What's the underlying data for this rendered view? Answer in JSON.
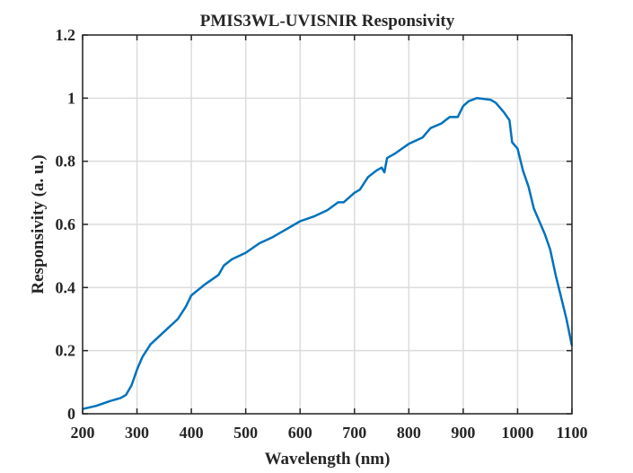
{
  "chart_data": {
    "type": "line",
    "title": "PMIS3WL-UVISNIR Responsivity",
    "xlabel": "Wavelength (nm)",
    "ylabel": "Responsivity (a. u.)",
    "xlim": [
      200,
      1100
    ],
    "ylim": [
      0,
      1.2
    ],
    "xticks": [
      200,
      300,
      400,
      500,
      600,
      700,
      800,
      900,
      1000,
      1100
    ],
    "xtick_labels": [
      "200",
      "300",
      "400",
      "500",
      "600",
      "700",
      "800",
      "900",
      "1000",
      "1100"
    ],
    "yticks": [
      0,
      0.2,
      0.4,
      0.6,
      0.8,
      1,
      1.2
    ],
    "ytick_labels": [
      "0",
      "0.2",
      "0.4",
      "0.6",
      "0.8",
      "1",
      "1.2"
    ],
    "grid": true,
    "line_color": "#0072BD",
    "series": [
      {
        "name": "Responsivity",
        "x": [
          200,
          225,
          250,
          270,
          280,
          290,
          300,
          310,
          325,
          350,
          375,
          390,
          400,
          425,
          450,
          460,
          475,
          500,
          525,
          550,
          575,
          600,
          625,
          650,
          670,
          680,
          700,
          710,
          725,
          740,
          750,
          755,
          760,
          775,
          800,
          825,
          840,
          860,
          875,
          890,
          900,
          910,
          925,
          950,
          960,
          975,
          985,
          990,
          1000,
          1010,
          1020,
          1030,
          1050,
          1060,
          1070,
          1080,
          1090,
          1100
        ],
        "y": [
          0.015,
          0.025,
          0.04,
          0.05,
          0.06,
          0.09,
          0.14,
          0.18,
          0.22,
          0.26,
          0.3,
          0.34,
          0.375,
          0.41,
          0.44,
          0.47,
          0.49,
          0.51,
          0.54,
          0.56,
          0.585,
          0.61,
          0.625,
          0.645,
          0.67,
          0.67,
          0.7,
          0.71,
          0.75,
          0.77,
          0.78,
          0.765,
          0.81,
          0.825,
          0.855,
          0.875,
          0.905,
          0.92,
          0.94,
          0.94,
          0.975,
          0.99,
          1.0,
          0.995,
          0.985,
          0.955,
          0.93,
          0.86,
          0.84,
          0.77,
          0.72,
          0.65,
          0.57,
          0.52,
          0.44,
          0.37,
          0.3,
          0.215
        ]
      }
    ]
  }
}
